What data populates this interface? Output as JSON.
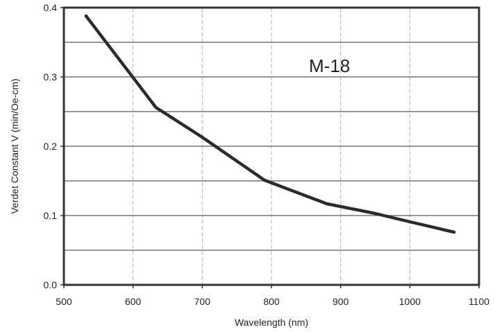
{
  "chart_data": {
    "type": "line",
    "title": "",
    "annotation": "M-18",
    "xlabel": "Wavelength (nm)",
    "ylabel": "Verdet Constant V (min/Oe-cm)",
    "xlim": [
      500,
      1100
    ],
    "ylim": [
      0.0,
      0.4
    ],
    "x_ticks": [
      500,
      600,
      700,
      800,
      900,
      1000,
      1100
    ],
    "x_tick_labels": [
      "500",
      "600",
      "700",
      "800",
      "900",
      "1000",
      "1100"
    ],
    "y_ticks": [
      0.0,
      0.1,
      0.2,
      0.3,
      0.4
    ],
    "y_tick_labels": [
      "0.0",
      "0.1",
      "0.2",
      "0.3",
      "0.4"
    ],
    "y_minor_gridlines": [
      0.05,
      0.15,
      0.25,
      0.35
    ],
    "grid": true,
    "legend": "none",
    "line_color": "#2b2b2b",
    "series": [
      {
        "x": [
          532,
          633,
          700,
          790,
          880,
          950,
          1000,
          1064
        ],
        "y": [
          0.388,
          0.256,
          0.213,
          0.151,
          0.117,
          0.103,
          0.091,
          0.076
        ]
      }
    ]
  }
}
